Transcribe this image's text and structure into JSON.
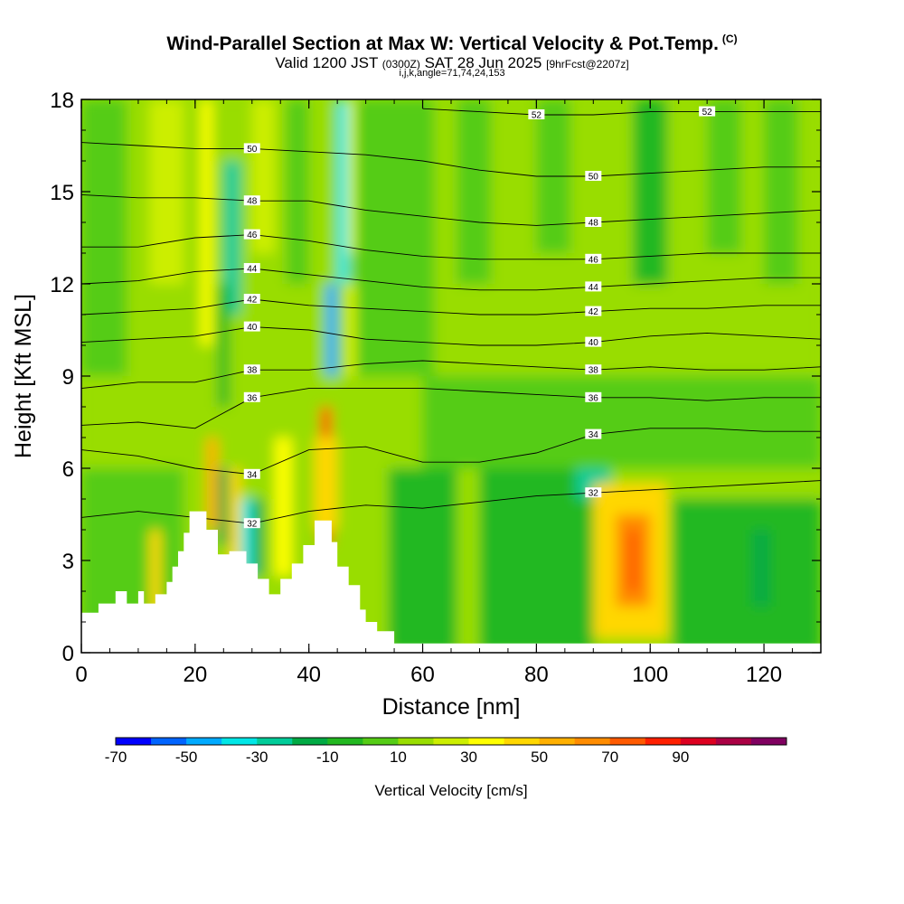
{
  "header": {
    "title": "Wind-Parallel Section at Max W: Vertical Velocity & Pot.Temp.",
    "copyright": "(C)",
    "valid_prefix": "Valid 1200 JST",
    "valid_utc": "(0300Z)",
    "valid_date": "SAT 28 Jun 2025",
    "forecast": "[9hrFcst@2207z]",
    "indices": "i,j,k,angle=71,74,24,153"
  },
  "colorbar": {
    "label": "Vertical Velocity [cm/s]",
    "tick_labels": [
      "-70",
      "-50",
      "-30",
      "-10",
      "10",
      "30",
      "50",
      "70",
      "90"
    ],
    "colors": [
      "#0000ff",
      "#0064ff",
      "#00aaff",
      "#00e6e6",
      "#00cc99",
      "#00aa44",
      "#22b820",
      "#55cc15",
      "#99dd00",
      "#ccee00",
      "#ffff00",
      "#ffd700",
      "#ffb000",
      "#ff8c00",
      "#ff5a00",
      "#ff2000",
      "#dd0020",
      "#aa0044",
      "#800060"
    ]
  },
  "chart_data": {
    "type": "heatmap",
    "xlabel": "Distance [nm]",
    "ylabel": "Height [Kft MSL]",
    "xlim": [
      0,
      130
    ],
    "ylim": [
      0,
      18
    ],
    "xticks": [
      "0",
      "20",
      "40",
      "60",
      "80",
      "100",
      "120"
    ],
    "yticks": [
      "0",
      "3",
      "6",
      "9",
      "12",
      "15",
      "18"
    ],
    "background_color": "#99dd00",
    "vertical_velocity_cells": [
      {
        "x0": 0,
        "x1": 130,
        "y0": 0,
        "y1": 18,
        "value": 5
      },
      {
        "x0": 0,
        "x1": 8,
        "y0": 9,
        "y1": 18,
        "value": -5
      },
      {
        "x0": 12,
        "x1": 18,
        "y0": 12,
        "y1": 18,
        "value": 15
      },
      {
        "x0": 21,
        "x1": 23,
        "y0": 10,
        "y1": 18,
        "value": 25
      },
      {
        "x0": 25,
        "x1": 28,
        "y0": 11,
        "y1": 16,
        "value": -35
      },
      {
        "x0": 24,
        "x1": 26,
        "y0": 8,
        "y1": 12,
        "value": -15
      },
      {
        "x0": 30,
        "x1": 34,
        "y0": 13,
        "y1": 18,
        "value": 15
      },
      {
        "x0": 36,
        "x1": 40,
        "y0": 12,
        "y1": 18,
        "value": -10
      },
      {
        "x0": 45,
        "x1": 47,
        "y0": 12,
        "y1": 18,
        "value": -45
      },
      {
        "x0": 47,
        "x1": 49,
        "y0": 13,
        "y1": 18,
        "value": 25
      },
      {
        "x0": 43,
        "x1": 45,
        "y0": 9,
        "y1": 12,
        "value": -55
      },
      {
        "x0": 47,
        "x1": 49,
        "y0": 9,
        "y1": 12,
        "value": 25
      },
      {
        "x0": 48,
        "x1": 62,
        "y0": 9,
        "y1": 18,
        "value": -5
      },
      {
        "x0": 66,
        "x1": 72,
        "y0": 12,
        "y1": 18,
        "value": -10
      },
      {
        "x0": 80,
        "x1": 86,
        "y0": 13,
        "y1": 18,
        "value": -5
      },
      {
        "x0": 97,
        "x1": 103,
        "y0": 12,
        "y1": 18,
        "value": -15
      },
      {
        "x0": 110,
        "x1": 116,
        "y0": 13,
        "y1": 18,
        "value": -5
      },
      {
        "x0": 120,
        "x1": 126,
        "y0": 12,
        "y1": 18,
        "value": -10
      },
      {
        "x0": 22,
        "x1": 24,
        "y0": 4,
        "y1": 7,
        "value": 45
      },
      {
        "x0": 24,
        "x1": 26,
        "y0": 3.5,
        "y1": 6,
        "value": -30
      },
      {
        "x0": 26,
        "x1": 28,
        "y0": 2.5,
        "y1": 6,
        "value": 35
      },
      {
        "x0": 28,
        "x1": 30,
        "y0": 2.5,
        "y1": 5,
        "value": -45
      },
      {
        "x0": 30,
        "x1": 32,
        "y0": 2.5,
        "y1": 5,
        "value": -25
      },
      {
        "x0": 34,
        "x1": 37,
        "y0": 2.5,
        "y1": 7,
        "value": 25
      },
      {
        "x0": 42,
        "x1": 44,
        "y0": 3.5,
        "y1": 8,
        "value": 65
      },
      {
        "x0": 41,
        "x1": 45,
        "y0": 4,
        "y1": 7,
        "value": 35
      },
      {
        "x0": 0,
        "x1": 18,
        "y0": 0,
        "y1": 6,
        "value": -10
      },
      {
        "x0": 12,
        "x1": 14,
        "y0": 1,
        "y1": 4,
        "value": 35
      },
      {
        "x0": 54,
        "x1": 66,
        "y0": 0,
        "y1": 6,
        "value": -15
      },
      {
        "x0": 70,
        "x1": 90,
        "y0": 0,
        "y1": 6,
        "value": -20
      },
      {
        "x0": 87,
        "x1": 93,
        "y0": 5,
        "y1": 8,
        "value": -35
      },
      {
        "x0": 90,
        "x1": 103,
        "y0": 0.5,
        "y1": 5.5,
        "value": 35
      },
      {
        "x0": 94,
        "x1": 100,
        "y0": 1.5,
        "y1": 4.5,
        "value": 55
      },
      {
        "x0": 96,
        "x1": 98,
        "y0": 2,
        "y1": 4,
        "value": 65
      },
      {
        "x0": 104,
        "x1": 130,
        "y0": 0,
        "y1": 5,
        "value": -15
      },
      {
        "x0": 118,
        "x1": 121,
        "y0": 1.5,
        "y1": 4,
        "value": -30
      },
      {
        "x0": 60,
        "x1": 130,
        "y0": 6,
        "y1": 9,
        "value": -10
      }
    ],
    "terrain": [
      [
        0,
        1.3
      ],
      [
        3,
        1.3
      ],
      [
        3,
        1.6
      ],
      [
        6,
        1.6
      ],
      [
        6,
        2.0
      ],
      [
        8,
        2.0
      ],
      [
        8,
        1.6
      ],
      [
        10,
        1.6
      ],
      [
        10,
        2.0
      ],
      [
        11,
        2.0
      ],
      [
        11,
        1.6
      ],
      [
        13,
        1.6
      ],
      [
        13,
        1.9
      ],
      [
        15,
        1.9
      ],
      [
        15,
        2.3
      ],
      [
        16,
        2.3
      ],
      [
        16,
        2.8
      ],
      [
        17,
        2.8
      ],
      [
        17,
        3.3
      ],
      [
        18,
        3.3
      ],
      [
        18,
        3.9
      ],
      [
        19,
        3.9
      ],
      [
        19,
        4.6
      ],
      [
        22,
        4.6
      ],
      [
        22,
        4.0
      ],
      [
        24,
        4.0
      ],
      [
        24,
        3.2
      ],
      [
        26,
        3.2
      ],
      [
        26,
        3.3
      ],
      [
        29,
        3.3
      ],
      [
        29,
        2.9
      ],
      [
        31,
        2.9
      ],
      [
        31,
        2.4
      ],
      [
        33,
        2.4
      ],
      [
        33,
        1.9
      ],
      [
        35,
        1.9
      ],
      [
        35,
        2.4
      ],
      [
        37,
        2.4
      ],
      [
        37,
        2.9
      ],
      [
        39,
        2.9
      ],
      [
        39,
        3.5
      ],
      [
        41,
        3.5
      ],
      [
        41,
        4.3
      ],
      [
        44,
        4.3
      ],
      [
        44,
        3.6
      ],
      [
        45,
        3.6
      ],
      [
        45,
        2.8
      ],
      [
        47,
        2.8
      ],
      [
        47,
        2.2
      ],
      [
        49,
        2.2
      ],
      [
        49,
        1.4
      ],
      [
        50,
        1.4
      ],
      [
        50,
        1.0
      ],
      [
        52,
        1.0
      ],
      [
        52,
        0.7
      ],
      [
        55,
        0.7
      ],
      [
        55,
        0.3
      ],
      [
        130,
        0.3
      ],
      [
        130,
        0
      ],
      [
        0,
        0
      ]
    ],
    "potential_temperature_contours": [
      {
        "value": 32,
        "label": "32",
        "points": [
          [
            0,
            4.4
          ],
          [
            10,
            4.6
          ],
          [
            20,
            4.4
          ],
          [
            30,
            4.2
          ],
          [
            40,
            4.6
          ],
          [
            50,
            4.8
          ],
          [
            60,
            4.7
          ],
          [
            70,
            4.9
          ],
          [
            80,
            5.1
          ],
          [
            90,
            5.2
          ],
          [
            100,
            5.3
          ],
          [
            110,
            5.4
          ],
          [
            120,
            5.5
          ],
          [
            130,
            5.6
          ]
        ]
      },
      {
        "value": 34,
        "label": "34",
        "points": [
          [
            0,
            6.6
          ],
          [
            10,
            6.4
          ],
          [
            20,
            6.0
          ],
          [
            30,
            5.8
          ],
          [
            40,
            6.6
          ],
          [
            50,
            6.7
          ],
          [
            60,
            6.2
          ],
          [
            70,
            6.2
          ],
          [
            80,
            6.5
          ],
          [
            90,
            7.1
          ],
          [
            100,
            7.3
          ],
          [
            110,
            7.3
          ],
          [
            120,
            7.2
          ],
          [
            130,
            7.2
          ]
        ]
      },
      {
        "value": 36,
        "label": "36",
        "points": [
          [
            0,
            7.4
          ],
          [
            10,
            7.5
          ],
          [
            20,
            7.3
          ],
          [
            30,
            8.3
          ],
          [
            40,
            8.6
          ],
          [
            50,
            8.6
          ],
          [
            60,
            8.6
          ],
          [
            70,
            8.5
          ],
          [
            80,
            8.4
          ],
          [
            90,
            8.3
          ],
          [
            100,
            8.3
          ],
          [
            110,
            8.2
          ],
          [
            120,
            8.3
          ],
          [
            130,
            8.3
          ]
        ]
      },
      {
        "value": 38,
        "label": "38",
        "points": [
          [
            0,
            8.6
          ],
          [
            10,
            8.8
          ],
          [
            20,
            8.8
          ],
          [
            30,
            9.2
          ],
          [
            40,
            9.2
          ],
          [
            50,
            9.4
          ],
          [
            60,
            9.5
          ],
          [
            70,
            9.4
          ],
          [
            80,
            9.3
          ],
          [
            90,
            9.2
          ],
          [
            100,
            9.3
          ],
          [
            110,
            9.2
          ],
          [
            120,
            9.2
          ],
          [
            130,
            9.3
          ]
        ]
      },
      {
        "value": 40,
        "label": "40",
        "points": [
          [
            0,
            10.1
          ],
          [
            10,
            10.2
          ],
          [
            20,
            10.3
          ],
          [
            30,
            10.6
          ],
          [
            40,
            10.5
          ],
          [
            50,
            10.2
          ],
          [
            60,
            10.1
          ],
          [
            70,
            10.0
          ],
          [
            80,
            10.0
          ],
          [
            90,
            10.1
          ],
          [
            100,
            10.3
          ],
          [
            110,
            10.4
          ],
          [
            120,
            10.3
          ],
          [
            130,
            10.2
          ]
        ]
      },
      {
        "value": 42,
        "label": "42",
        "points": [
          [
            0,
            11.0
          ],
          [
            10,
            11.1
          ],
          [
            20,
            11.2
          ],
          [
            30,
            11.5
          ],
          [
            40,
            11.3
          ],
          [
            50,
            11.2
          ],
          [
            60,
            11.1
          ],
          [
            70,
            11.0
          ],
          [
            80,
            11.0
          ],
          [
            90,
            11.1
          ],
          [
            100,
            11.2
          ],
          [
            110,
            11.2
          ],
          [
            120,
            11.3
          ],
          [
            130,
            11.3
          ]
        ]
      },
      {
        "value": 44,
        "label": "44",
        "points": [
          [
            0,
            12.0
          ],
          [
            10,
            12.1
          ],
          [
            20,
            12.4
          ],
          [
            30,
            12.5
          ],
          [
            40,
            12.3
          ],
          [
            50,
            12.1
          ],
          [
            60,
            11.9
          ],
          [
            70,
            11.8
          ],
          [
            80,
            11.8
          ],
          [
            90,
            11.9
          ],
          [
            100,
            12.0
          ],
          [
            110,
            12.1
          ],
          [
            120,
            12.2
          ],
          [
            130,
            12.2
          ]
        ]
      },
      {
        "value": 46,
        "label": "46",
        "points": [
          [
            0,
            13.2
          ],
          [
            10,
            13.2
          ],
          [
            20,
            13.5
          ],
          [
            30,
            13.6
          ],
          [
            40,
            13.4
          ],
          [
            50,
            13.1
          ],
          [
            60,
            12.9
          ],
          [
            70,
            12.8
          ],
          [
            80,
            12.8
          ],
          [
            90,
            12.8
          ],
          [
            100,
            12.9
          ],
          [
            110,
            13.0
          ],
          [
            120,
            13.0
          ],
          [
            130,
            13.0
          ]
        ]
      },
      {
        "value": 48,
        "label": "48",
        "points": [
          [
            0,
            14.9
          ],
          [
            10,
            14.8
          ],
          [
            20,
            14.8
          ],
          [
            30,
            14.7
          ],
          [
            40,
            14.7
          ],
          [
            50,
            14.4
          ],
          [
            60,
            14.2
          ],
          [
            70,
            14.0
          ],
          [
            80,
            13.9
          ],
          [
            90,
            14.0
          ],
          [
            100,
            14.1
          ],
          [
            110,
            14.2
          ],
          [
            120,
            14.3
          ],
          [
            130,
            14.4
          ]
        ]
      },
      {
        "value": 50,
        "label": "50",
        "points": [
          [
            0,
            16.6
          ],
          [
            10,
            16.5
          ],
          [
            20,
            16.4
          ],
          [
            30,
            16.4
          ],
          [
            40,
            16.3
          ],
          [
            50,
            16.2
          ],
          [
            60,
            16.0
          ],
          [
            70,
            15.7
          ],
          [
            80,
            15.5
          ],
          [
            90,
            15.5
          ],
          [
            100,
            15.6
          ],
          [
            110,
            15.7
          ],
          [
            120,
            15.8
          ],
          [
            130,
            15.8
          ]
        ]
      },
      {
        "value": 52,
        "label": "52",
        "points": [
          [
            60,
            17.7
          ],
          [
            70,
            17.6
          ],
          [
            80,
            17.5
          ],
          [
            90,
            17.5
          ],
          [
            100,
            17.6
          ],
          [
            110,
            17.6
          ],
          [
            120,
            17.6
          ],
          [
            130,
            17.6
          ]
        ]
      }
    ]
  }
}
